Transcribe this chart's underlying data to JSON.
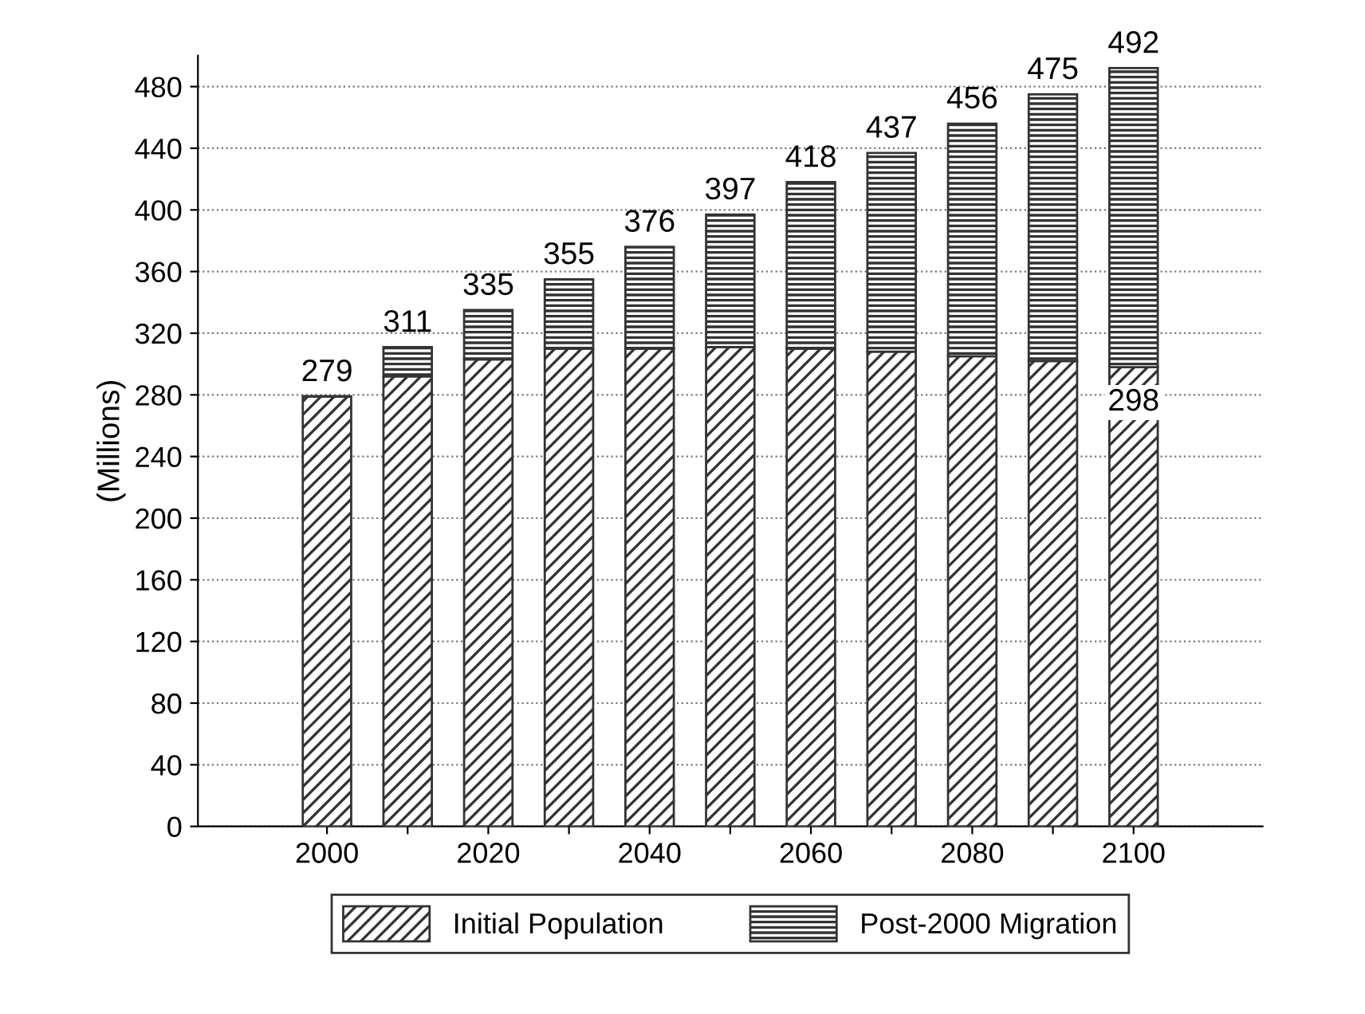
{
  "chart_data": {
    "type": "bar",
    "stacked": true,
    "ylabel": "(Millions)",
    "categories": [
      "2000",
      null,
      "2020",
      null,
      "2040",
      null,
      "2060",
      null,
      "2080",
      null,
      "2100"
    ],
    "series": [
      {
        "name": "Initial Population",
        "color": "#333333",
        "values": [
          279,
          292,
          303,
          310,
          310,
          311,
          310,
          308,
          305,
          302,
          298
        ],
        "value_labels": [
          null,
          null,
          null,
          null,
          null,
          null,
          null,
          null,
          null,
          null,
          "298"
        ]
      },
      {
        "name": "Post-2000 Migration",
        "color": "#333333",
        "values": [
          0,
          19,
          32,
          45,
          66,
          86,
          108,
          129,
          151,
          173,
          194
        ]
      }
    ],
    "totals": [
      "279",
      "311",
      "335",
      "355",
      "376",
      "397",
      "418",
      "437",
      "456",
      "475",
      "492"
    ],
    "ylim": [
      0,
      500
    ],
    "yticks": [
      0,
      40,
      80,
      120,
      160,
      200,
      240,
      280,
      320,
      360,
      400,
      440,
      480
    ],
    "grid": "y",
    "legend": "bottom"
  }
}
